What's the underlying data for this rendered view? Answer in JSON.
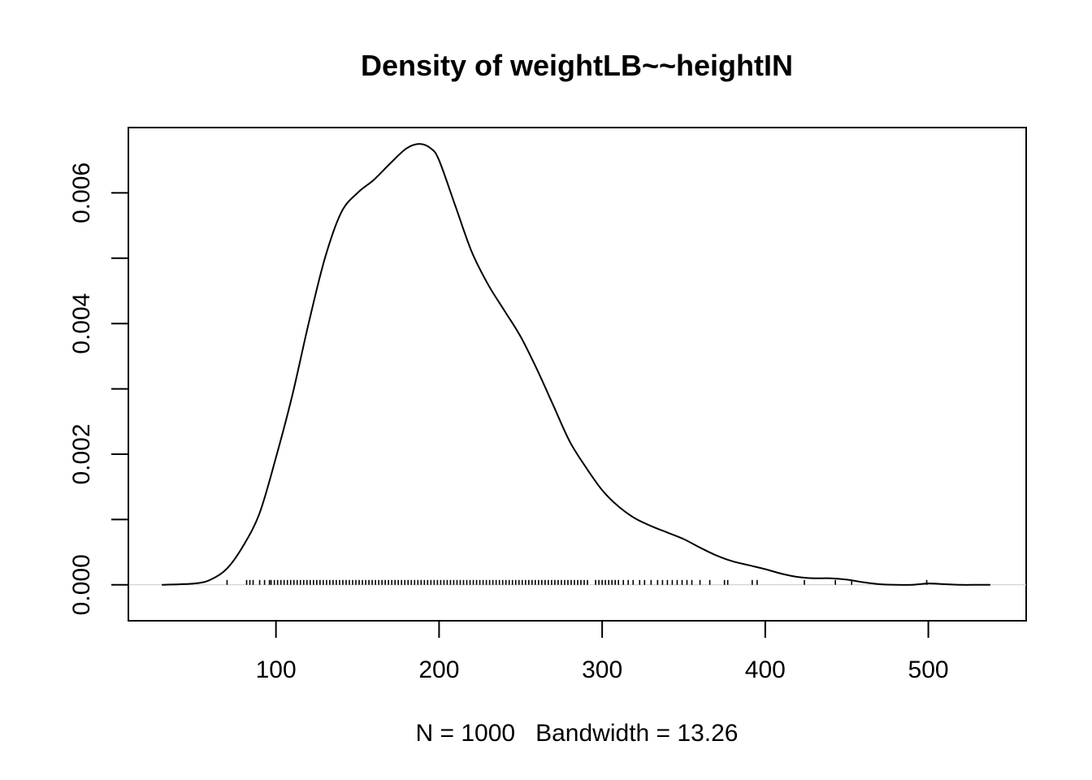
{
  "chart_data": {
    "type": "line",
    "title": "Density of weightLB~~heightIN",
    "subtitle": "N = 1000   Bandwidth = 13.26",
    "xlabel": "",
    "ylabel": "",
    "n": 1000,
    "bandwidth": 13.26,
    "xlim": [
      9.5,
      560
    ],
    "ylim": [
      -0.00055,
      0.007
    ],
    "x_ticks": [
      100,
      200,
      300,
      400,
      500
    ],
    "x_tick_labels": [
      "100",
      "200",
      "300",
      "400",
      "500"
    ],
    "y_ticks": [
      0.0,
      0.001,
      0.002,
      0.003,
      0.004,
      0.005,
      0.006
    ],
    "y_tick_labels": [
      "0.000",
      "",
      "0.002",
      "",
      "0.004",
      "",
      "0.006"
    ],
    "zero_reference_line": true,
    "series": [
      {
        "name": "density",
        "x": [
          30,
          50,
          60,
          70,
          80,
          90,
          100,
          110,
          120,
          130,
          140,
          150,
          160,
          170,
          180,
          188,
          195,
          200,
          210,
          220,
          230,
          240,
          250,
          260,
          270,
          280,
          290,
          300,
          310,
          320,
          330,
          340,
          350,
          360,
          370,
          380,
          390,
          400,
          410,
          420,
          430,
          440,
          450,
          460,
          470,
          480,
          490,
          500,
          510,
          520,
          530,
          538
        ],
        "y": [
          0.0,
          2e-05,
          8e-05,
          0.00025,
          0.0006,
          0.0011,
          0.00195,
          0.0029,
          0.004,
          0.005,
          0.0057,
          0.006,
          0.0062,
          0.00645,
          0.00668,
          0.00675,
          0.00668,
          0.0065,
          0.0058,
          0.0051,
          0.0046,
          0.0042,
          0.0038,
          0.0033,
          0.00275,
          0.0022,
          0.0018,
          0.00145,
          0.0012,
          0.00102,
          0.0009,
          0.0008,
          0.0007,
          0.00057,
          0.00045,
          0.00036,
          0.0003,
          0.00024,
          0.00017,
          0.00012,
          0.0001,
          0.0001,
          8e-05,
          4e-05,
          1e-05,
          0.0,
          0.0,
          2e-05,
          1e-05,
          0.0,
          0.0,
          0.0
        ]
      }
    ],
    "rug_x": [
      70,
      82,
      84,
      86,
      90,
      93,
      96,
      97,
      99,
      101,
      103,
      105,
      107,
      109,
      111,
      113,
      115,
      117,
      119,
      121,
      123,
      125,
      127,
      129,
      131,
      133,
      135,
      137,
      139,
      141,
      143,
      145,
      147,
      149,
      151,
      153,
      155,
      157,
      159,
      161,
      163,
      165,
      167,
      169,
      171,
      173,
      175,
      177,
      179,
      181,
      183,
      185,
      187,
      189,
      191,
      193,
      195,
      197,
      199,
      201,
      203,
      205,
      207,
      209,
      211,
      213,
      215,
      217,
      219,
      221,
      223,
      225,
      227,
      229,
      231,
      233,
      235,
      237,
      239,
      241,
      243,
      245,
      247,
      249,
      251,
      253,
      255,
      257,
      259,
      261,
      263,
      265,
      267,
      269,
      271,
      273,
      275,
      277,
      279,
      281,
      283,
      285,
      287,
      289,
      291,
      296,
      298,
      300,
      302,
      304,
      306,
      308,
      310,
      313,
      316,
      319,
      323,
      326,
      330,
      334,
      337,
      340,
      343,
      346,
      349,
      352,
      355,
      360,
      366,
      375,
      377,
      392,
      395,
      424,
      443,
      453,
      499
    ]
  }
}
